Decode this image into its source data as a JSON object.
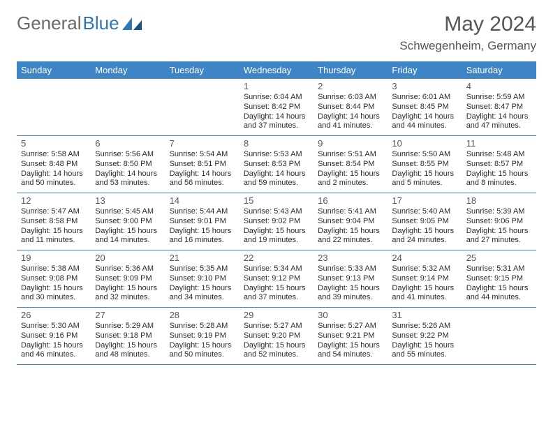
{
  "brand": {
    "name1": "General",
    "name2": "Blue"
  },
  "title": "May 2024",
  "location": "Schwegenheim, Germany",
  "colors": {
    "accent": "#3d85c6",
    "text": "#2b2b2b",
    "muted": "#555555",
    "bg": "#ffffff"
  },
  "dow": [
    "Sunday",
    "Monday",
    "Tuesday",
    "Wednesday",
    "Thursday",
    "Friday",
    "Saturday"
  ],
  "weeks": [
    [
      null,
      null,
      null,
      {
        "n": "1",
        "r": "Sunrise: 6:04 AM",
        "s": "Sunset: 8:42 PM",
        "d1": "Daylight: 14 hours",
        "d2": "and 37 minutes."
      },
      {
        "n": "2",
        "r": "Sunrise: 6:03 AM",
        "s": "Sunset: 8:44 PM",
        "d1": "Daylight: 14 hours",
        "d2": "and 41 minutes."
      },
      {
        "n": "3",
        "r": "Sunrise: 6:01 AM",
        "s": "Sunset: 8:45 PM",
        "d1": "Daylight: 14 hours",
        "d2": "and 44 minutes."
      },
      {
        "n": "4",
        "r": "Sunrise: 5:59 AM",
        "s": "Sunset: 8:47 PM",
        "d1": "Daylight: 14 hours",
        "d2": "and 47 minutes."
      }
    ],
    [
      {
        "n": "5",
        "r": "Sunrise: 5:58 AM",
        "s": "Sunset: 8:48 PM",
        "d1": "Daylight: 14 hours",
        "d2": "and 50 minutes."
      },
      {
        "n": "6",
        "r": "Sunrise: 5:56 AM",
        "s": "Sunset: 8:50 PM",
        "d1": "Daylight: 14 hours",
        "d2": "and 53 minutes."
      },
      {
        "n": "7",
        "r": "Sunrise: 5:54 AM",
        "s": "Sunset: 8:51 PM",
        "d1": "Daylight: 14 hours",
        "d2": "and 56 minutes."
      },
      {
        "n": "8",
        "r": "Sunrise: 5:53 AM",
        "s": "Sunset: 8:53 PM",
        "d1": "Daylight: 14 hours",
        "d2": "and 59 minutes."
      },
      {
        "n": "9",
        "r": "Sunrise: 5:51 AM",
        "s": "Sunset: 8:54 PM",
        "d1": "Daylight: 15 hours",
        "d2": "and 2 minutes."
      },
      {
        "n": "10",
        "r": "Sunrise: 5:50 AM",
        "s": "Sunset: 8:55 PM",
        "d1": "Daylight: 15 hours",
        "d2": "and 5 minutes."
      },
      {
        "n": "11",
        "r": "Sunrise: 5:48 AM",
        "s": "Sunset: 8:57 PM",
        "d1": "Daylight: 15 hours",
        "d2": "and 8 minutes."
      }
    ],
    [
      {
        "n": "12",
        "r": "Sunrise: 5:47 AM",
        "s": "Sunset: 8:58 PM",
        "d1": "Daylight: 15 hours",
        "d2": "and 11 minutes."
      },
      {
        "n": "13",
        "r": "Sunrise: 5:45 AM",
        "s": "Sunset: 9:00 PM",
        "d1": "Daylight: 15 hours",
        "d2": "and 14 minutes."
      },
      {
        "n": "14",
        "r": "Sunrise: 5:44 AM",
        "s": "Sunset: 9:01 PM",
        "d1": "Daylight: 15 hours",
        "d2": "and 16 minutes."
      },
      {
        "n": "15",
        "r": "Sunrise: 5:43 AM",
        "s": "Sunset: 9:02 PM",
        "d1": "Daylight: 15 hours",
        "d2": "and 19 minutes."
      },
      {
        "n": "16",
        "r": "Sunrise: 5:41 AM",
        "s": "Sunset: 9:04 PM",
        "d1": "Daylight: 15 hours",
        "d2": "and 22 minutes."
      },
      {
        "n": "17",
        "r": "Sunrise: 5:40 AM",
        "s": "Sunset: 9:05 PM",
        "d1": "Daylight: 15 hours",
        "d2": "and 24 minutes."
      },
      {
        "n": "18",
        "r": "Sunrise: 5:39 AM",
        "s": "Sunset: 9:06 PM",
        "d1": "Daylight: 15 hours",
        "d2": "and 27 minutes."
      }
    ],
    [
      {
        "n": "19",
        "r": "Sunrise: 5:38 AM",
        "s": "Sunset: 9:08 PM",
        "d1": "Daylight: 15 hours",
        "d2": "and 30 minutes."
      },
      {
        "n": "20",
        "r": "Sunrise: 5:36 AM",
        "s": "Sunset: 9:09 PM",
        "d1": "Daylight: 15 hours",
        "d2": "and 32 minutes."
      },
      {
        "n": "21",
        "r": "Sunrise: 5:35 AM",
        "s": "Sunset: 9:10 PM",
        "d1": "Daylight: 15 hours",
        "d2": "and 34 minutes."
      },
      {
        "n": "22",
        "r": "Sunrise: 5:34 AM",
        "s": "Sunset: 9:12 PM",
        "d1": "Daylight: 15 hours",
        "d2": "and 37 minutes."
      },
      {
        "n": "23",
        "r": "Sunrise: 5:33 AM",
        "s": "Sunset: 9:13 PM",
        "d1": "Daylight: 15 hours",
        "d2": "and 39 minutes."
      },
      {
        "n": "24",
        "r": "Sunrise: 5:32 AM",
        "s": "Sunset: 9:14 PM",
        "d1": "Daylight: 15 hours",
        "d2": "and 41 minutes."
      },
      {
        "n": "25",
        "r": "Sunrise: 5:31 AM",
        "s": "Sunset: 9:15 PM",
        "d1": "Daylight: 15 hours",
        "d2": "and 44 minutes."
      }
    ],
    [
      {
        "n": "26",
        "r": "Sunrise: 5:30 AM",
        "s": "Sunset: 9:16 PM",
        "d1": "Daylight: 15 hours",
        "d2": "and 46 minutes."
      },
      {
        "n": "27",
        "r": "Sunrise: 5:29 AM",
        "s": "Sunset: 9:18 PM",
        "d1": "Daylight: 15 hours",
        "d2": "and 48 minutes."
      },
      {
        "n": "28",
        "r": "Sunrise: 5:28 AM",
        "s": "Sunset: 9:19 PM",
        "d1": "Daylight: 15 hours",
        "d2": "and 50 minutes."
      },
      {
        "n": "29",
        "r": "Sunrise: 5:27 AM",
        "s": "Sunset: 9:20 PM",
        "d1": "Daylight: 15 hours",
        "d2": "and 52 minutes."
      },
      {
        "n": "30",
        "r": "Sunrise: 5:27 AM",
        "s": "Sunset: 9:21 PM",
        "d1": "Daylight: 15 hours",
        "d2": "and 54 minutes."
      },
      {
        "n": "31",
        "r": "Sunrise: 5:26 AM",
        "s": "Sunset: 9:22 PM",
        "d1": "Daylight: 15 hours",
        "d2": "and 55 minutes."
      },
      null
    ]
  ]
}
